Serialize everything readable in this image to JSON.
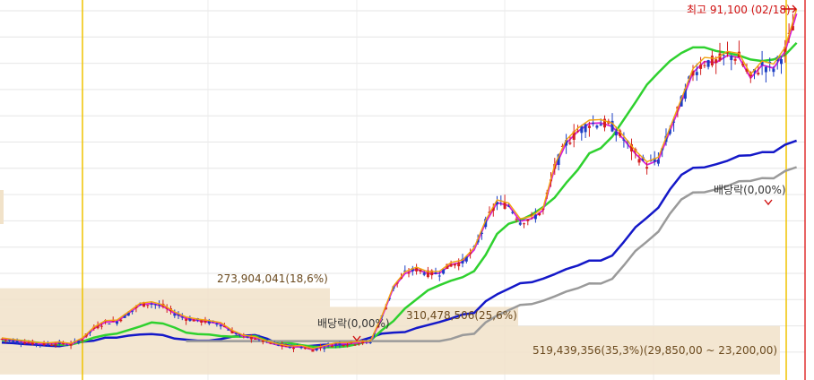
{
  "chart_data": {
    "type": "candlestick",
    "title": "",
    "xlabel": "",
    "ylabel": "",
    "grid": true,
    "ylim": [
      18000,
      92000
    ],
    "candles": [],
    "series": [
      {
        "values": [
          24700,
          24600,
          24400,
          24300,
          24100,
          24000,
          24400,
          24900,
          25100,
          25700,
          25700,
          26100,
          26300,
          26400,
          26200,
          25500,
          25300,
          25100,
          25100,
          25400,
          25900,
          26100,
          26200,
          25500,
          24400,
          24100,
          23900,
          24100,
          24300,
          24300,
          24400,
          25000,
          25700,
          26500,
          26700,
          26800,
          27600,
          28200,
          28800,
          29500,
          30300,
          30600,
          32900,
          34300,
          35400,
          36500,
          36700,
          37400,
          38300,
          39300,
          40000,
          41000,
          41000,
          42000,
          44700,
          47600,
          49500,
          51500,
          55100,
          58000,
          59400,
          59500,
          60100,
          60800,
          61800,
          61900,
          62500,
          62500,
          64000,
          64800
        ]
      },
      {
        "values": [
          25200,
          25200,
          25000,
          24700,
          24500,
          24300,
          24300,
          24900,
          25700,
          26200,
          26500,
          27200,
          27900,
          28700,
          28500,
          27700,
          26700,
          26400,
          26300,
          26000,
          25900,
          25900,
          26000,
          25100,
          24900,
          24600,
          24200,
          23900,
          23800,
          23800,
          24000,
          24500,
          25100,
          27200,
          29000,
          31500,
          33300,
          35100,
          36100,
          37000,
          37700,
          38900,
          42100,
          46300,
          48300,
          49000,
          50100,
          51600,
          53500,
          56400,
          59000,
          62300,
          63300,
          65600,
          69000,
          72400,
          75900,
          78300,
          80600,
          82200,
          83300,
          83300,
          82600,
          82200,
          81700,
          80900,
          80600,
          80900,
          81800,
          84200
        ]
      },
      {
        "values": [
          25400,
          25100,
          24800,
          24500,
          24400,
          24600,
          24300,
          25400,
          27500,
          28800,
          28900,
          30500,
          32200,
          32500,
          31900,
          30500,
          29500,
          29100,
          28800,
          28400,
          26900,
          25900,
          25600,
          24800,
          24200,
          23800,
          23900,
          23300,
          23900,
          24400,
          24500,
          24700,
          24800,
          29800,
          35600,
          38400,
          39300,
          38400,
          38500,
          40200,
          40700,
          43100,
          48500,
          52500,
          51900,
          48800,
          49300,
          51000,
          59400,
          64300,
          66600,
          68200,
          68300,
          67600,
          65000,
          62200,
          60000,
          60900,
          66700,
          72400,
          78300,
          80500,
          80300,
          81700,
          81300,
          77200,
          79800,
          79200,
          82500,
          90000
        ]
      }
    ],
    "annotations": {
      "high": "최고 91,100 (02/18)",
      "dividend_1": "배당락(0,00%)",
      "dividend_2": "배당락(0,00%)",
      "vp_1": "273,904,041(18,6%)",
      "vp_2": "310,478,506(25,6%)",
      "vp_3": "519,439,356(35,3%)(29,850,00 ~ 23,200,00)"
    },
    "volume_profile": [
      {
        "y_low": 31800,
        "y_high": 35500,
        "label": "273,904,041(18,6%)"
      },
      {
        "y_low": 28000,
        "y_high": 31800,
        "label": "310,478,506(25,6%)"
      },
      {
        "y_low": 18400,
        "y_high": 28000,
        "label": "519,439,356(35,3%)(29,850,00 ~ 23,200,00)"
      }
    ],
    "colors": {
      "up": "#d32020",
      "down": "#1d3fc4",
      "ma_5": "#f2a30f",
      "ma_20": "#d81fd8",
      "ma_60": "#2fd12f",
      "ma_120": "#1418c8",
      "ma_240": "#9a9a9a",
      "volume_profile": "#f1e2c9",
      "high_label": "#d01010"
    }
  }
}
